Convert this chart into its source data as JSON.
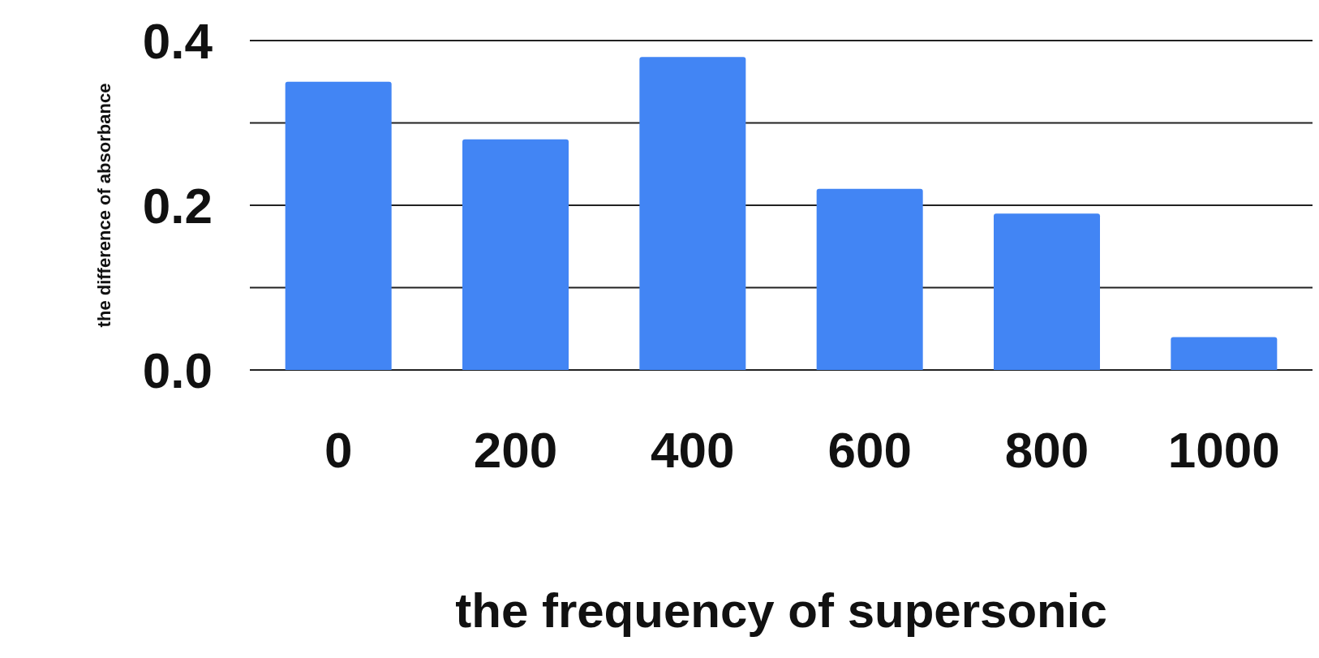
{
  "chart_data": {
    "type": "bar",
    "xlabel": "the frequency of supersonic",
    "ylabel": "the difference of absorbance",
    "categories": [
      "0",
      "200",
      "400",
      "600",
      "800",
      "1000"
    ],
    "values": [
      0.35,
      0.28,
      0.38,
      0.22,
      0.19,
      0.04
    ],
    "color": "#4285f4",
    "ylim": [
      0,
      0.4
    ],
    "yticks": [
      {
        "value": 0,
        "label": "0.0"
      },
      {
        "value": 0.1,
        "label": null
      },
      {
        "value": 0.2,
        "label": "0.2"
      },
      {
        "value": 0.3,
        "label": null
      },
      {
        "value": 0.4,
        "label": "0.4"
      }
    ],
    "grid": "y"
  }
}
